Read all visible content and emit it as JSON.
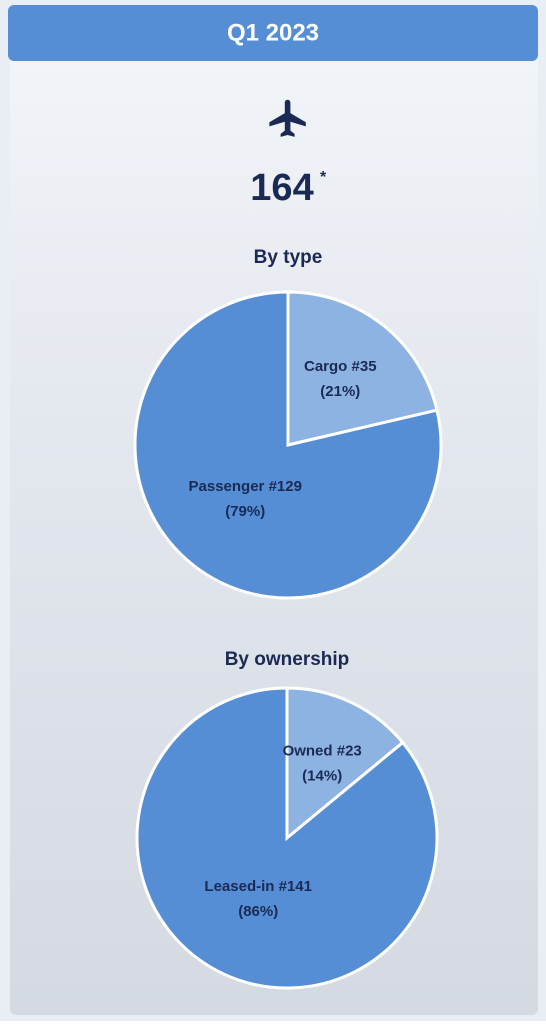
{
  "header": {
    "title": "Q1 2023",
    "total": "164",
    "total_note": "*"
  },
  "chart_data": [
    {
      "type": "pie",
      "title": "By type",
      "categories": [
        "Cargo",
        "Passenger"
      ],
      "values": [
        35,
        129
      ],
      "value_labels": [
        "#35",
        "#129"
      ],
      "percentages": [
        21,
        79
      ],
      "percentage_labels": [
        "(21%)",
        "(79%)"
      ],
      "colors": [
        "#8db3e2",
        "#558ed5"
      ]
    },
    {
      "type": "pie",
      "title": "By ownership",
      "categories": [
        "Owned",
        "Leased-in"
      ],
      "values": [
        23,
        141
      ],
      "value_labels": [
        "#23",
        "#141"
      ],
      "percentages": [
        14,
        86
      ],
      "percentage_labels": [
        "(14%)",
        "(86%)"
      ],
      "colors": [
        "#8db3e2",
        "#558ed5"
      ]
    }
  ]
}
